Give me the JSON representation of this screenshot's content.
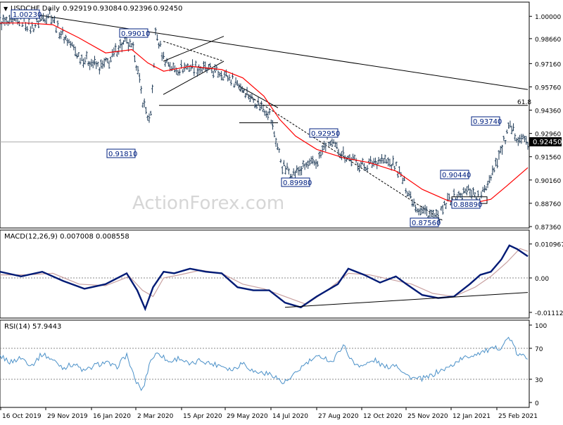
{
  "colors": {
    "background": "#ffffff",
    "frame": "#000000",
    "bars": "#1f3b57",
    "ma": "#ff0000",
    "macd": "#001a75",
    "signal": "#c8a0a0",
    "rsi": "#4a90c8",
    "trendline": "#000000",
    "watermark": "#d6d6d6",
    "label_box": "#002080"
  },
  "watermark": "ActionForex.com",
  "chart_data": [
    {
      "type": "ohlc",
      "title": "USDCHF Daily",
      "ohlc_values": [
        "0.92919",
        "0.93084",
        "0.92396",
        "0.92450"
      ],
      "last_price_label": "0.92450",
      "ylim": [
        0.8736,
        1.0056
      ],
      "y_ticks": [
        "1.00000",
        "0.98660",
        "0.97160",
        "0.95760",
        "0.94360",
        "0.92960",
        "0.91560",
        "0.90160",
        "0.88760",
        "0.87360"
      ],
      "x_ticks": [
        "16 Oct 2019",
        "29 Nov 2019",
        "16 Jan 2020",
        "2 Mar 2020",
        "15 Apr 2020",
        "29 May 2020",
        "14 Jul 2020",
        "27 Aug 2020",
        "12 Oct 2020",
        "25 Nov 2020",
        "12 Jan 2021",
        "25 Feb 2021"
      ],
      "fib_label": "61.8",
      "price_labels": [
        "1.00230",
        "0.99010",
        "0.91810",
        "0.89980",
        "0.92950",
        "0.87560",
        "0.90440",
        "0.88890",
        "0.93740"
      ],
      "close_path": [
        [
          0,
          0.997
        ],
        [
          0.02,
          0.995
        ],
        [
          0.04,
          0.998
        ],
        [
          0.06,
          0.993
        ],
        [
          0.08,
          0.999
        ],
        [
          0.095,
          1.0023
        ],
        [
          0.11,
          0.992
        ],
        [
          0.13,
          0.985
        ],
        [
          0.15,
          0.976
        ],
        [
          0.17,
          0.973
        ],
        [
          0.19,
          0.969
        ],
        [
          0.21,
          0.974
        ],
        [
          0.225,
          0.982
        ],
        [
          0.24,
          0.984
        ],
        [
          0.255,
          0.978
        ],
        [
          0.27,
          0.95
        ],
        [
          0.285,
          0.935
        ],
        [
          0.295,
          0.99
        ],
        [
          0.31,
          0.975
        ],
        [
          0.33,
          0.968
        ],
        [
          0.36,
          0.97
        ],
        [
          0.39,
          0.968
        ],
        [
          0.42,
          0.966
        ],
        [
          0.45,
          0.96
        ],
        [
          0.48,
          0.95
        ],
        [
          0.51,
          0.942
        ],
        [
          0.535,
          0.91
        ],
        [
          0.555,
          0.905
        ],
        [
          0.58,
          0.91
        ],
        [
          0.6,
          0.912
        ],
        [
          0.62,
          0.925
        ],
        [
          0.64,
          0.92
        ],
        [
          0.66,
          0.915
        ],
        [
          0.69,
          0.91
        ],
        [
          0.72,
          0.914
        ],
        [
          0.75,
          0.91
        ],
        [
          0.77,
          0.897
        ],
        [
          0.79,
          0.885
        ],
        [
          0.81,
          0.882
        ],
        [
          0.83,
          0.878
        ],
        [
          0.85,
          0.89
        ],
        [
          0.87,
          0.892
        ],
        [
          0.89,
          0.896
        ],
        [
          0.91,
          0.89
        ],
        [
          0.93,
          0.905
        ],
        [
          0.95,
          0.92
        ],
        [
          0.965,
          0.933
        ],
        [
          0.98,
          0.928
        ],
        [
          1.0,
          0.9245
        ]
      ],
      "ma_path": [
        [
          0,
          0.996
        ],
        [
          0.05,
          0.996
        ],
        [
          0.1,
          0.995
        ],
        [
          0.15,
          0.987
        ],
        [
          0.2,
          0.978
        ],
        [
          0.25,
          0.98
        ],
        [
          0.28,
          0.972
        ],
        [
          0.31,
          0.967
        ],
        [
          0.36,
          0.97
        ],
        [
          0.42,
          0.968
        ],
        [
          0.46,
          0.963
        ],
        [
          0.5,
          0.952
        ],
        [
          0.53,
          0.938
        ],
        [
          0.56,
          0.928
        ],
        [
          0.6,
          0.92
        ],
        [
          0.65,
          0.915
        ],
        [
          0.7,
          0.912
        ],
        [
          0.75,
          0.907
        ],
        [
          0.8,
          0.896
        ],
        [
          0.85,
          0.889
        ],
        [
          0.88,
          0.888
        ],
        [
          0.9,
          0.888
        ],
        [
          0.93,
          0.89
        ],
        [
          0.96,
          0.898
        ],
        [
          1.0,
          0.909
        ]
      ]
    },
    {
      "type": "line",
      "title": "MACD(12,26,9) 0.007008 0.008558",
      "ylim": [
        -0.0125,
        0.0125
      ],
      "y_ticks": [
        "0.010967",
        "0.00",
        "-0.011127"
      ],
      "series": [
        {
          "name": "MACD",
          "values": [
            [
              0,
              0.002
            ],
            [
              0.04,
              0.0005
            ],
            [
              0.08,
              0.002
            ],
            [
              0.12,
              -0.001
            ],
            [
              0.16,
              -0.0035
            ],
            [
              0.2,
              -0.002
            ],
            [
              0.24,
              0.0015
            ],
            [
              0.26,
              -0.004
            ],
            [
              0.275,
              -0.01
            ],
            [
              0.29,
              -0.003
            ],
            [
              0.31,
              0.002
            ],
            [
              0.33,
              0.0015
            ],
            [
              0.36,
              0.003
            ],
            [
              0.39,
              0.002
            ],
            [
              0.42,
              0.0015
            ],
            [
              0.45,
              -0.003
            ],
            [
              0.48,
              -0.004
            ],
            [
              0.51,
              -0.004
            ],
            [
              0.54,
              -0.008
            ],
            [
              0.57,
              -0.0095
            ],
            [
              0.6,
              -0.006
            ],
            [
              0.64,
              -0.002
            ],
            [
              0.66,
              0.003
            ],
            [
              0.69,
              0.001
            ],
            [
              0.72,
              -0.0015
            ],
            [
              0.75,
              0.0005
            ],
            [
              0.77,
              -0.002
            ],
            [
              0.8,
              -0.0055
            ],
            [
              0.83,
              -0.0065
            ],
            [
              0.86,
              -0.006
            ],
            [
              0.89,
              -0.002
            ],
            [
              0.91,
              0.001
            ],
            [
              0.93,
              0.002
            ],
            [
              0.95,
              0.006
            ],
            [
              0.965,
              0.0105
            ],
            [
              0.98,
              0.0093
            ],
            [
              1.0,
              0.007
            ]
          ]
        },
        {
          "name": "Signal",
          "values": [
            [
              0,
              0.001
            ],
            [
              0.05,
              0.001
            ],
            [
              0.1,
              0.0015
            ],
            [
              0.15,
              -0.002
            ],
            [
              0.2,
              -0.0025
            ],
            [
              0.245,
              0.0005
            ],
            [
              0.27,
              -0.004
            ],
            [
              0.29,
              -0.006
            ],
            [
              0.31,
              0.0
            ],
            [
              0.34,
              0.001
            ],
            [
              0.38,
              0.0025
            ],
            [
              0.42,
              0.0015
            ],
            [
              0.46,
              -0.002
            ],
            [
              0.5,
              -0.0035
            ],
            [
              0.54,
              -0.006
            ],
            [
              0.58,
              -0.0085
            ],
            [
              0.62,
              -0.004
            ],
            [
              0.66,
              0.0015
            ],
            [
              0.7,
              0.001
            ],
            [
              0.74,
              -0.0005
            ],
            [
              0.78,
              -0.002
            ],
            [
              0.82,
              -0.005
            ],
            [
              0.86,
              -0.006
            ],
            [
              0.9,
              -0.003
            ],
            [
              0.93,
              0.0005
            ],
            [
              0.96,
              0.005
            ],
            [
              0.985,
              0.0095
            ],
            [
              1.0,
              0.0086
            ]
          ]
        }
      ]
    },
    {
      "type": "line",
      "title": "RSI(14) 57.9443",
      "ylim": [
        0,
        100
      ],
      "y_ticks": [
        "100",
        "70",
        "30",
        "0"
      ],
      "levels": [
        70,
        30
      ],
      "series": [
        {
          "name": "RSI",
          "values": [
            [
              0,
              60
            ],
            [
              0.02,
              52
            ],
            [
              0.04,
              58
            ],
            [
              0.06,
              48
            ],
            [
              0.08,
              63
            ],
            [
              0.1,
              55
            ],
            [
              0.12,
              45
            ],
            [
              0.14,
              50
            ],
            [
              0.16,
              40
            ],
            [
              0.18,
              48
            ],
            [
              0.2,
              52
            ],
            [
              0.22,
              45
            ],
            [
              0.24,
              62
            ],
            [
              0.255,
              30
            ],
            [
              0.27,
              15
            ],
            [
              0.285,
              55
            ],
            [
              0.3,
              65
            ],
            [
              0.32,
              52
            ],
            [
              0.34,
              58
            ],
            [
              0.36,
              48
            ],
            [
              0.38,
              55
            ],
            [
              0.4,
              50
            ],
            [
              0.42,
              48
            ],
            [
              0.44,
              42
            ],
            [
              0.46,
              52
            ],
            [
              0.48,
              40
            ],
            [
              0.5,
              38
            ],
            [
              0.52,
              35
            ],
            [
              0.535,
              25
            ],
            [
              0.55,
              30
            ],
            [
              0.57,
              45
            ],
            [
              0.59,
              55
            ],
            [
              0.61,
              60
            ],
            [
              0.63,
              52
            ],
            [
              0.65,
              75
            ],
            [
              0.67,
              50
            ],
            [
              0.69,
              48
            ],
            [
              0.71,
              55
            ],
            [
              0.73,
              45
            ],
            [
              0.75,
              50
            ],
            [
              0.77,
              35
            ],
            [
              0.79,
              30
            ],
            [
              0.81,
              32
            ],
            [
              0.83,
              40
            ],
            [
              0.85,
              45
            ],
            [
              0.87,
              55
            ],
            [
              0.89,
              60
            ],
            [
              0.91,
              65
            ],
            [
              0.93,
              68
            ],
            [
              0.95,
              72
            ],
            [
              0.965,
              85
            ],
            [
              0.98,
              62
            ],
            [
              1.0,
              58
            ]
          ]
        }
      ]
    }
  ]
}
